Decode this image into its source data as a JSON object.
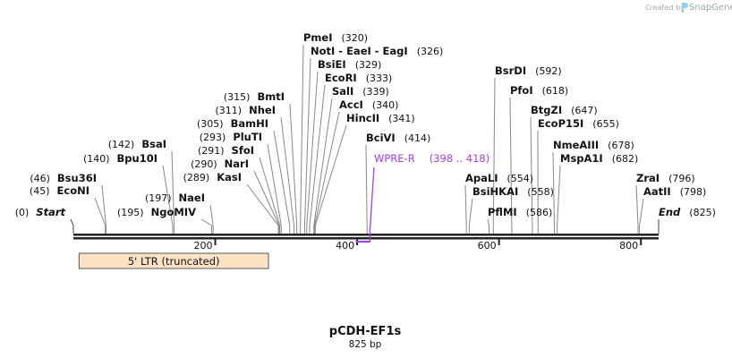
{
  "watermark": {
    "created_by": "Created by",
    "brand": "SnapGene"
  },
  "map": {
    "name": "pCDH-EF1s",
    "length_label": "825 bp",
    "length": 825,
    "ticks": [
      {
        "value": 200,
        "label": "200"
      },
      {
        "value": 400,
        "label": "400"
      },
      {
        "value": 600,
        "label": "600"
      },
      {
        "value": 800,
        "label": "800"
      }
    ],
    "sites": [
      {
        "name": "Start",
        "pos": 0,
        "pos_label": "(0)",
        "italic": true
      },
      {
        "name": "EcoNI",
        "pos": 45,
        "pos_label": "(45)"
      },
      {
        "name": "Bsu36I",
        "pos": 46,
        "pos_label": "(46)"
      },
      {
        "name": "Bpu10I",
        "pos": 140,
        "pos_label": "(140)"
      },
      {
        "name": "BsaI",
        "pos": 142,
        "pos_label": "(142)"
      },
      {
        "name": "NgoMIV",
        "pos": 195,
        "pos_label": "(195)"
      },
      {
        "name": "NaeI",
        "pos": 197,
        "pos_label": "(197)"
      },
      {
        "name": "KasI",
        "pos": 289,
        "pos_label": "(289)"
      },
      {
        "name": "NarI",
        "pos": 290,
        "pos_label": "(290)"
      },
      {
        "name": "SfoI",
        "pos": 291,
        "pos_label": "(291)"
      },
      {
        "name": "PluTI",
        "pos": 293,
        "pos_label": "(293)"
      },
      {
        "name": "BamHI",
        "pos": 305,
        "pos_label": "(305)"
      },
      {
        "name": "NheI",
        "pos": 311,
        "pos_label": "(311)"
      },
      {
        "name": "BmtI",
        "pos": 315,
        "pos_label": "(315)"
      },
      {
        "name": "PmeI",
        "pos": 320,
        "pos_label": "(320)"
      },
      {
        "name": "NotI  - EaeI  - EagI",
        "pos": 326,
        "pos_label": "(326)"
      },
      {
        "name": "BsiEI",
        "pos": 329,
        "pos_label": "(329)"
      },
      {
        "name": "EcoRI",
        "pos": 333,
        "pos_label": "(333)"
      },
      {
        "name": "SalI",
        "pos": 339,
        "pos_label": "(339)"
      },
      {
        "name": "AccI",
        "pos": 340,
        "pos_label": "(340)"
      },
      {
        "name": "HincII",
        "pos": 341,
        "pos_label": "(341)"
      },
      {
        "name": "BciVI",
        "pos": 414,
        "pos_label": "(414)"
      },
      {
        "name": "ApaLI",
        "pos": 554,
        "pos_label": "(554)"
      },
      {
        "name": "BsiHKAI",
        "pos": 558,
        "pos_label": "(558)"
      },
      {
        "name": "PflMI",
        "pos": 586,
        "pos_label": "(586)"
      },
      {
        "name": "BsrDI",
        "pos": 592,
        "pos_label": "(592)"
      },
      {
        "name": "PfoI",
        "pos": 618,
        "pos_label": "(618)"
      },
      {
        "name": "BtgZI",
        "pos": 647,
        "pos_label": "(647)"
      },
      {
        "name": "EcoP15I",
        "pos": 655,
        "pos_label": "(655)"
      },
      {
        "name": "NmeAIII",
        "pos": 678,
        "pos_label": "(678)"
      },
      {
        "name": "MspA1I",
        "pos": 682,
        "pos_label": "(682)"
      },
      {
        "name": "ZraI",
        "pos": 796,
        "pos_label": "(796)"
      },
      {
        "name": "AatII",
        "pos": 798,
        "pos_label": "(798)"
      },
      {
        "name": "End",
        "pos": 825,
        "pos_label": "(825)",
        "italic": true
      }
    ],
    "primer": {
      "name": "WPRE-R",
      "range_label": "(398 .. 418)",
      "start": 398,
      "end": 418,
      "color": "#a23cf0"
    },
    "feature": {
      "name": "5' LTR (truncated)",
      "start": 8,
      "end": 275,
      "color": "#fde2c4"
    }
  }
}
